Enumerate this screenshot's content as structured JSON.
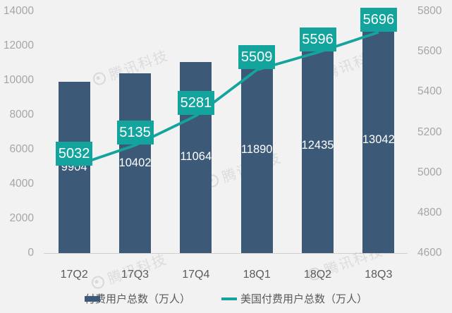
{
  "watermark": "腾讯科技",
  "colors": {
    "background": "#f2f2f2",
    "bar": "#3c5a78",
    "line": "#13a59d",
    "axis_label": "#a6a6a6",
    "category_label": "#5b5b5b",
    "legend_text": "#595959",
    "value_label_text": "#ffffff"
  },
  "legend": [
    {
      "label": "付费用户总数（万人）",
      "type": "bar"
    },
    {
      "label": "美国付费用户总数（万人）",
      "type": "line"
    }
  ],
  "chart_data": {
    "type": "bar+line combo, dual y-axis",
    "title": "",
    "categories": [
      "17Q2",
      "17Q3",
      "17Q4",
      "18Q1",
      "18Q2",
      "18Q3"
    ],
    "series": [
      {
        "name": "付费用户总数（万人）",
        "type": "bar",
        "axis": "left",
        "values": [
          9904,
          10402,
          11064,
          11890,
          12435,
          13042
        ],
        "color": "#3c5a78"
      },
      {
        "name": "美国付费用户总数（万人）",
        "type": "line",
        "axis": "right",
        "values": [
          5032,
          5135,
          5281,
          5509,
          5596,
          5696
        ],
        "color": "#13a59d"
      }
    ],
    "left_axis": {
      "min": 0,
      "max": 14000,
      "step": 2000,
      "ticks": [
        0,
        2000,
        4000,
        6000,
        8000,
        10000,
        12000,
        14000
      ]
    },
    "right_axis": {
      "min": 4600,
      "max": 5800,
      "step": 200,
      "ticks": [
        4600,
        4800,
        5000,
        5200,
        5400,
        5600,
        5800
      ]
    },
    "grid": false,
    "legend_position": "bottom"
  }
}
